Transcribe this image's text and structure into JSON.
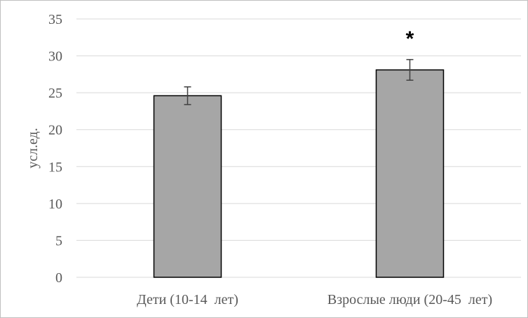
{
  "chart_data": {
    "type": "bar",
    "categories": [
      "Дети (10-14  лет)",
      "Взрослые люди (20-45  лет)"
    ],
    "values": [
      24.6,
      28.1
    ],
    "error": [
      1.2,
      1.4
    ],
    "title": "",
    "xlabel": "",
    "ylabel": "усл.ед.",
    "ylim": [
      0,
      35
    ],
    "yticks": [
      0,
      5,
      10,
      15,
      20,
      25,
      30,
      35
    ],
    "grid": true,
    "legend": "none",
    "annotations": [
      {
        "category_index": 1,
        "text": "*"
      }
    ],
    "colors": {
      "bar_fill": "#a6a6a6",
      "bar_stroke": "#000000",
      "grid": "#d9d9d9",
      "error_bar": "#404040",
      "text": "#595959"
    }
  }
}
